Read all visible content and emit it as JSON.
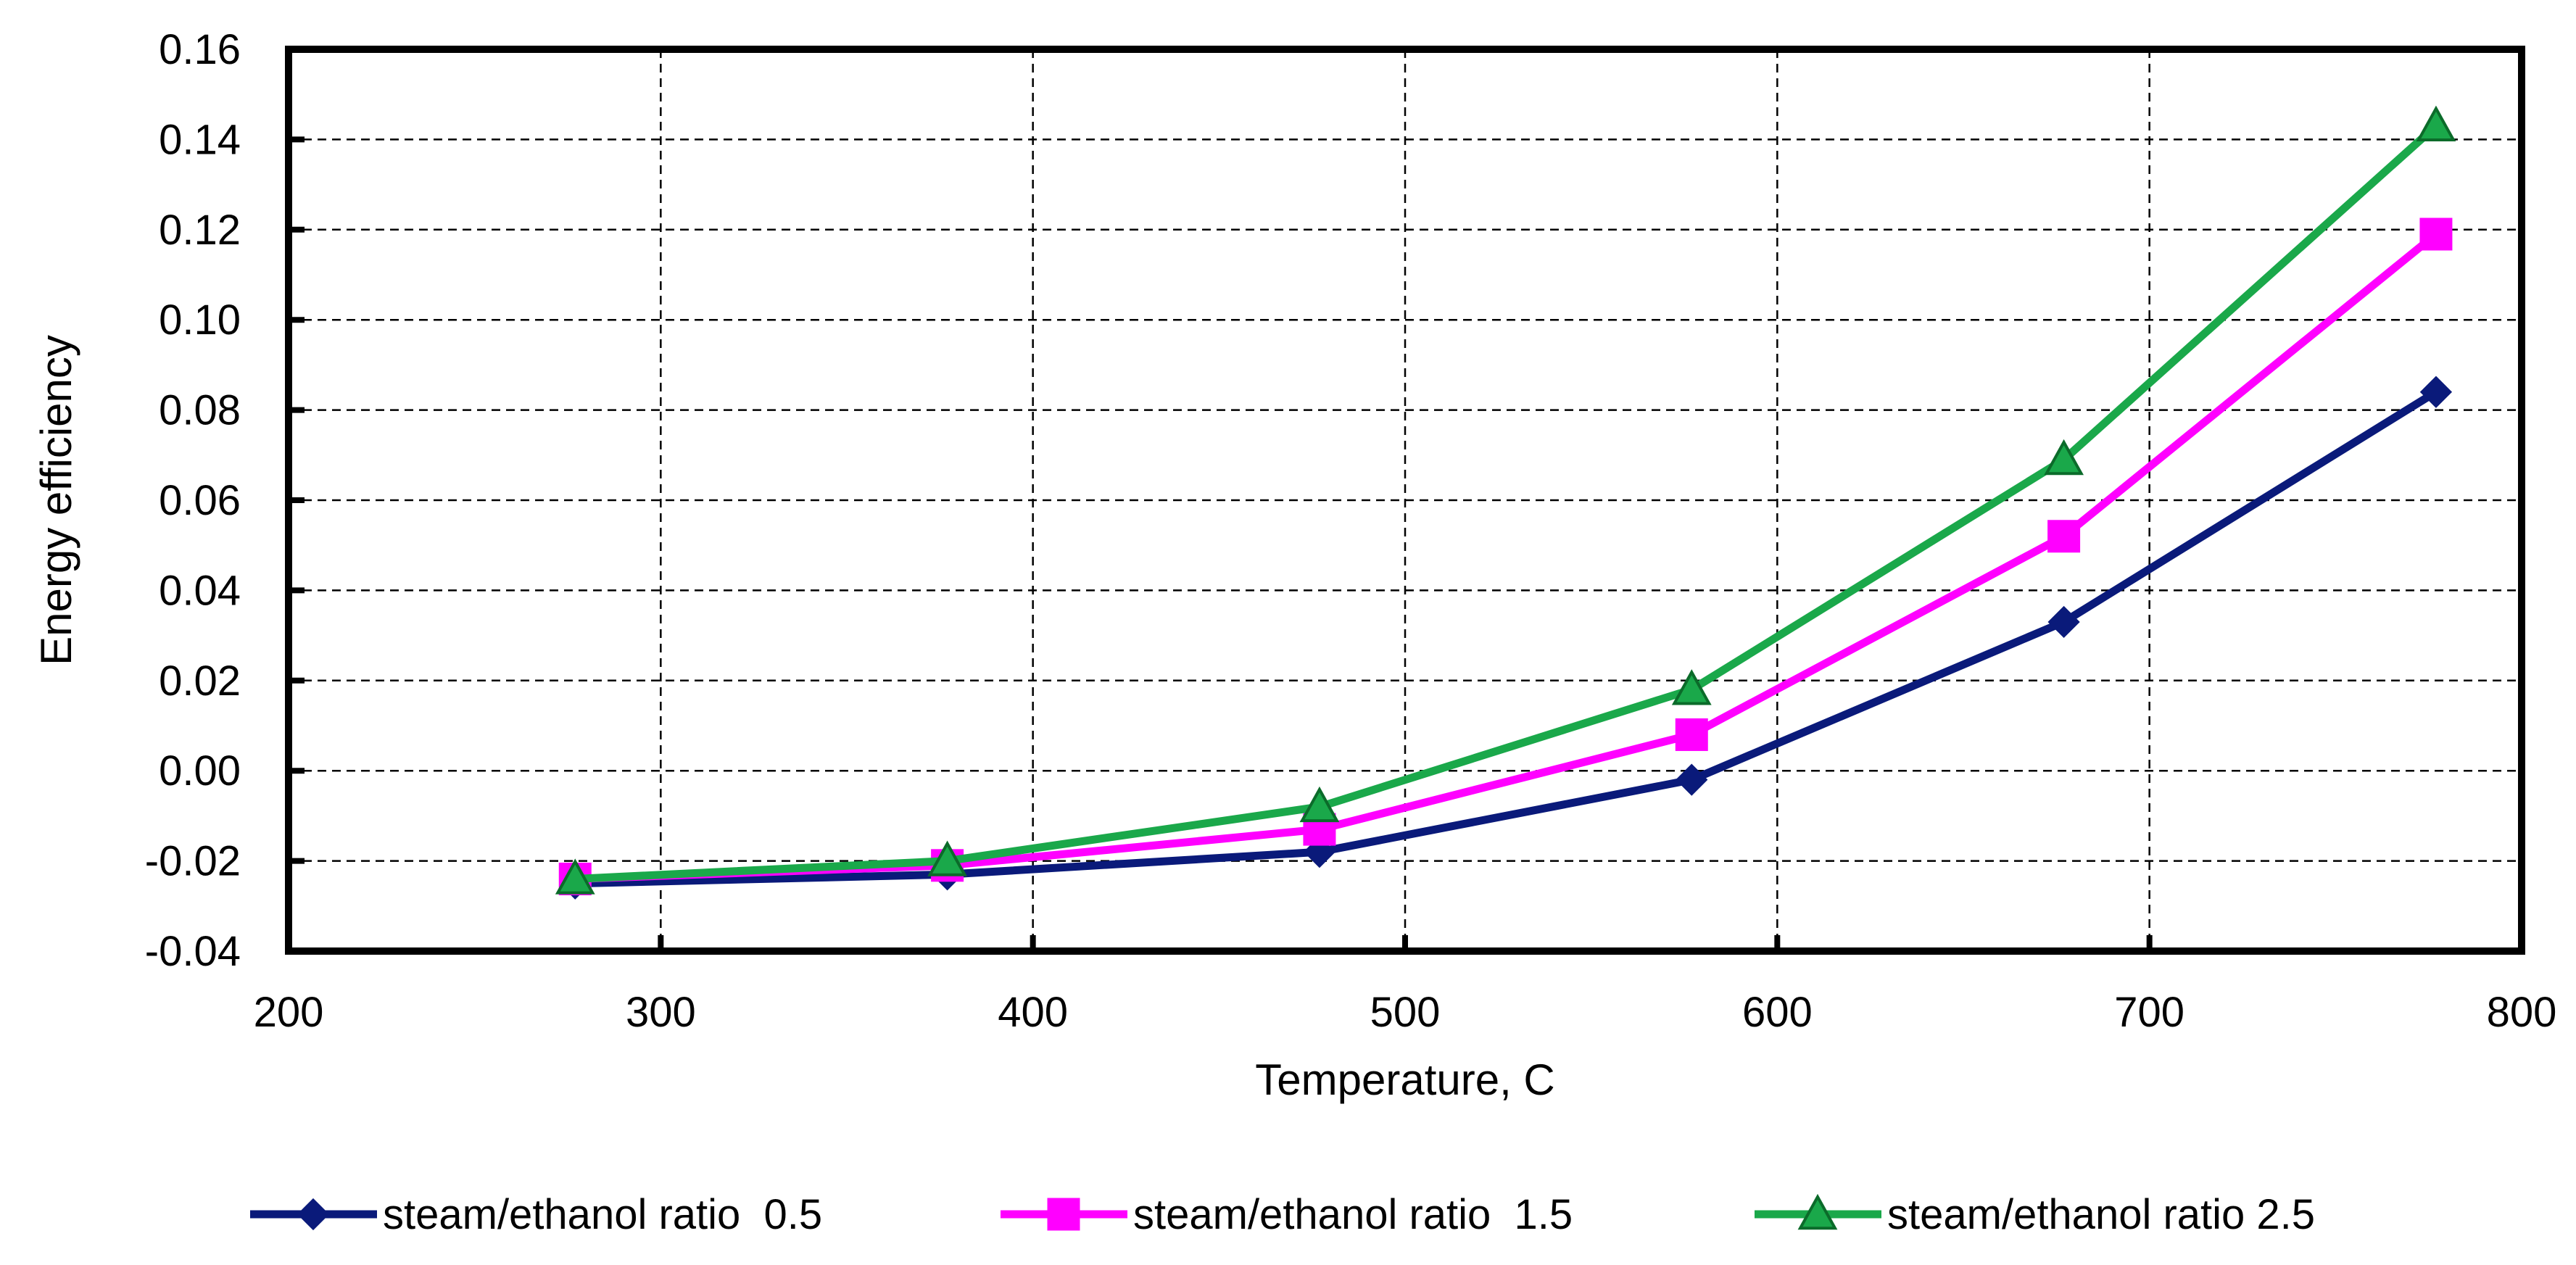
{
  "chart_data": {
    "type": "line",
    "title": "",
    "xlabel": "Temperature, C",
    "ylabel": "Energy efficiency",
    "xlim": [
      200,
      800
    ],
    "ylim": [
      -0.04,
      0.16
    ],
    "x_ticks": [
      200,
      300,
      400,
      500,
      600,
      700,
      800
    ],
    "x_tick_labels": [
      "200",
      "300",
      "400",
      "500",
      "600",
      "700",
      "800"
    ],
    "y_ticks": [
      -0.04,
      -0.02,
      0.0,
      0.02,
      0.04,
      0.06,
      0.08,
      0.1,
      0.12,
      0.14,
      0.16
    ],
    "y_tick_labels": [
      "-0.04",
      "-0.02",
      "0.00",
      "0.02",
      "0.04",
      "0.06",
      "0.08",
      "0.10",
      "0.12",
      "0.14",
      "0.16"
    ],
    "grid": true,
    "legend_position": "bottom",
    "x": [
      277,
      377,
      477,
      577,
      677,
      777
    ],
    "series": [
      {
        "name": "steam/ethanol ratio  0.5",
        "marker": "diamond",
        "color": "#0a1a7a",
        "values": [
          -0.025,
          -0.023,
          -0.018,
          -0.002,
          0.033,
          0.084
        ]
      },
      {
        "name": "steam/ethanol ratio  1.5",
        "marker": "square",
        "color": "#ff00ff",
        "values": [
          -0.024,
          -0.021,
          -0.013,
          0.008,
          0.052,
          0.119
        ]
      },
      {
        "name": "steam/ethanol ratio 2.5",
        "marker": "triangle",
        "color": "#1aa84a",
        "values": [
          -0.024,
          -0.02,
          -0.008,
          0.018,
          0.069,
          0.143
        ]
      }
    ]
  }
}
